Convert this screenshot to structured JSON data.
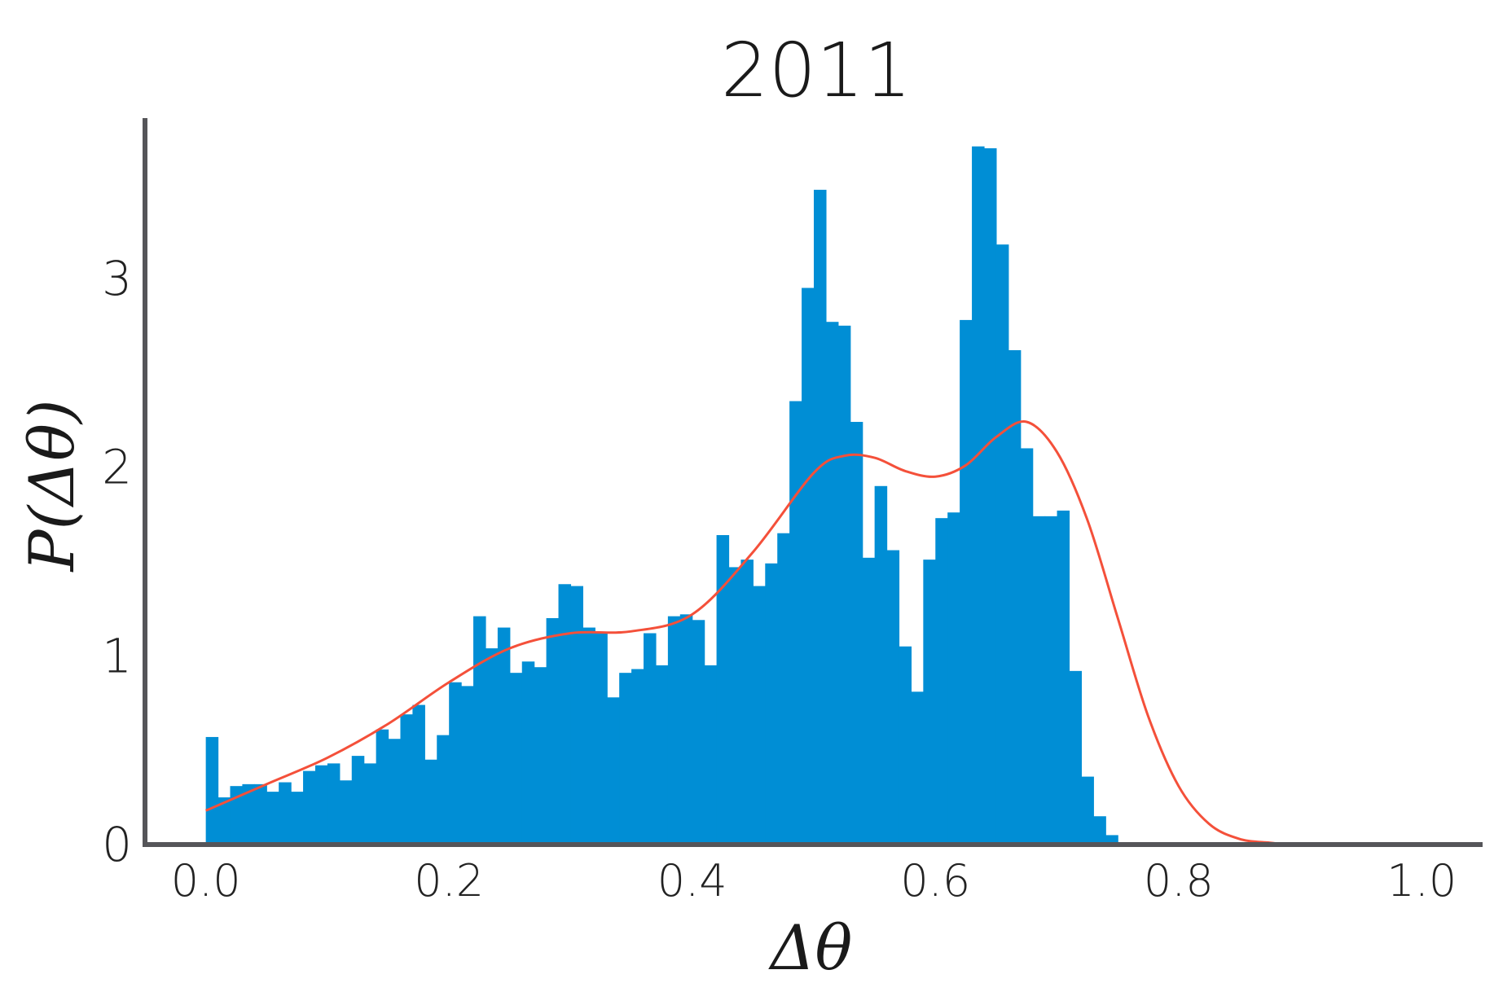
{
  "chart_data": {
    "type": "bar",
    "title": "2011",
    "xlabel": "Δθ",
    "ylabel": "P(Δθ)",
    "xlim": [
      -0.05,
      1.05
    ],
    "ylim": [
      0,
      3.85
    ],
    "xticks": [
      0.0,
      0.2,
      0.4,
      0.6,
      0.8,
      1.0
    ],
    "xtick_labels": [
      "0.0",
      "0.2",
      "0.4",
      "0.6",
      "0.8",
      "1.0"
    ],
    "yticks": [
      0,
      1,
      2,
      3
    ],
    "ytick_labels": [
      "0",
      "1",
      "2",
      "3"
    ],
    "grid": false,
    "bar_color": "#008ed5",
    "curve_color": "#f4503a",
    "axis_color": "#555559",
    "histogram": {
      "bin_start": 0.0,
      "bin_width": 0.01,
      "values": [
        0.57,
        0.25,
        0.31,
        0.32,
        0.32,
        0.28,
        0.33,
        0.28,
        0.39,
        0.42,
        0.43,
        0.34,
        0.47,
        0.43,
        0.61,
        0.56,
        0.69,
        0.74,
        0.45,
        0.58,
        0.86,
        0.84,
        1.21,
        1.04,
        1.15,
        0.91,
        0.97,
        0.94,
        1.2,
        1.38,
        1.37,
        1.15,
        1.12,
        0.78,
        0.91,
        0.93,
        1.12,
        0.95,
        1.21,
        1.22,
        1.19,
        0.95,
        1.64,
        1.47,
        1.51,
        1.37,
        1.49,
        1.65,
        2.35,
        2.95,
        3.47,
        2.77,
        2.75,
        2.24,
        1.52,
        1.9,
        1.56,
        1.05,
        0.81,
        1.51,
        1.73,
        1.76,
        2.78,
        3.7,
        3.69,
        3.18,
        2.62,
        2.1,
        1.74,
        1.74,
        1.77,
        0.92,
        0.36,
        0.15,
        0.05
      ]
    },
    "kde_curve": {
      "x": [
        0.0,
        0.05,
        0.1,
        0.15,
        0.2,
        0.25,
        0.3,
        0.35,
        0.4,
        0.45,
        0.5,
        0.525,
        0.55,
        0.575,
        0.6,
        0.625,
        0.65,
        0.675,
        0.7,
        0.725,
        0.75,
        0.775,
        0.8,
        0.825,
        0.85,
        0.875,
        0.9,
        1.0
      ],
      "y": [
        0.18,
        0.32,
        0.46,
        0.64,
        0.86,
        1.04,
        1.12,
        1.13,
        1.22,
        1.55,
        1.97,
        2.06,
        2.05,
        1.98,
        1.95,
        2.01,
        2.16,
        2.24,
        2.08,
        1.72,
        1.2,
        0.68,
        0.31,
        0.11,
        0.03,
        0.01,
        0.0,
        0.0
      ]
    }
  }
}
